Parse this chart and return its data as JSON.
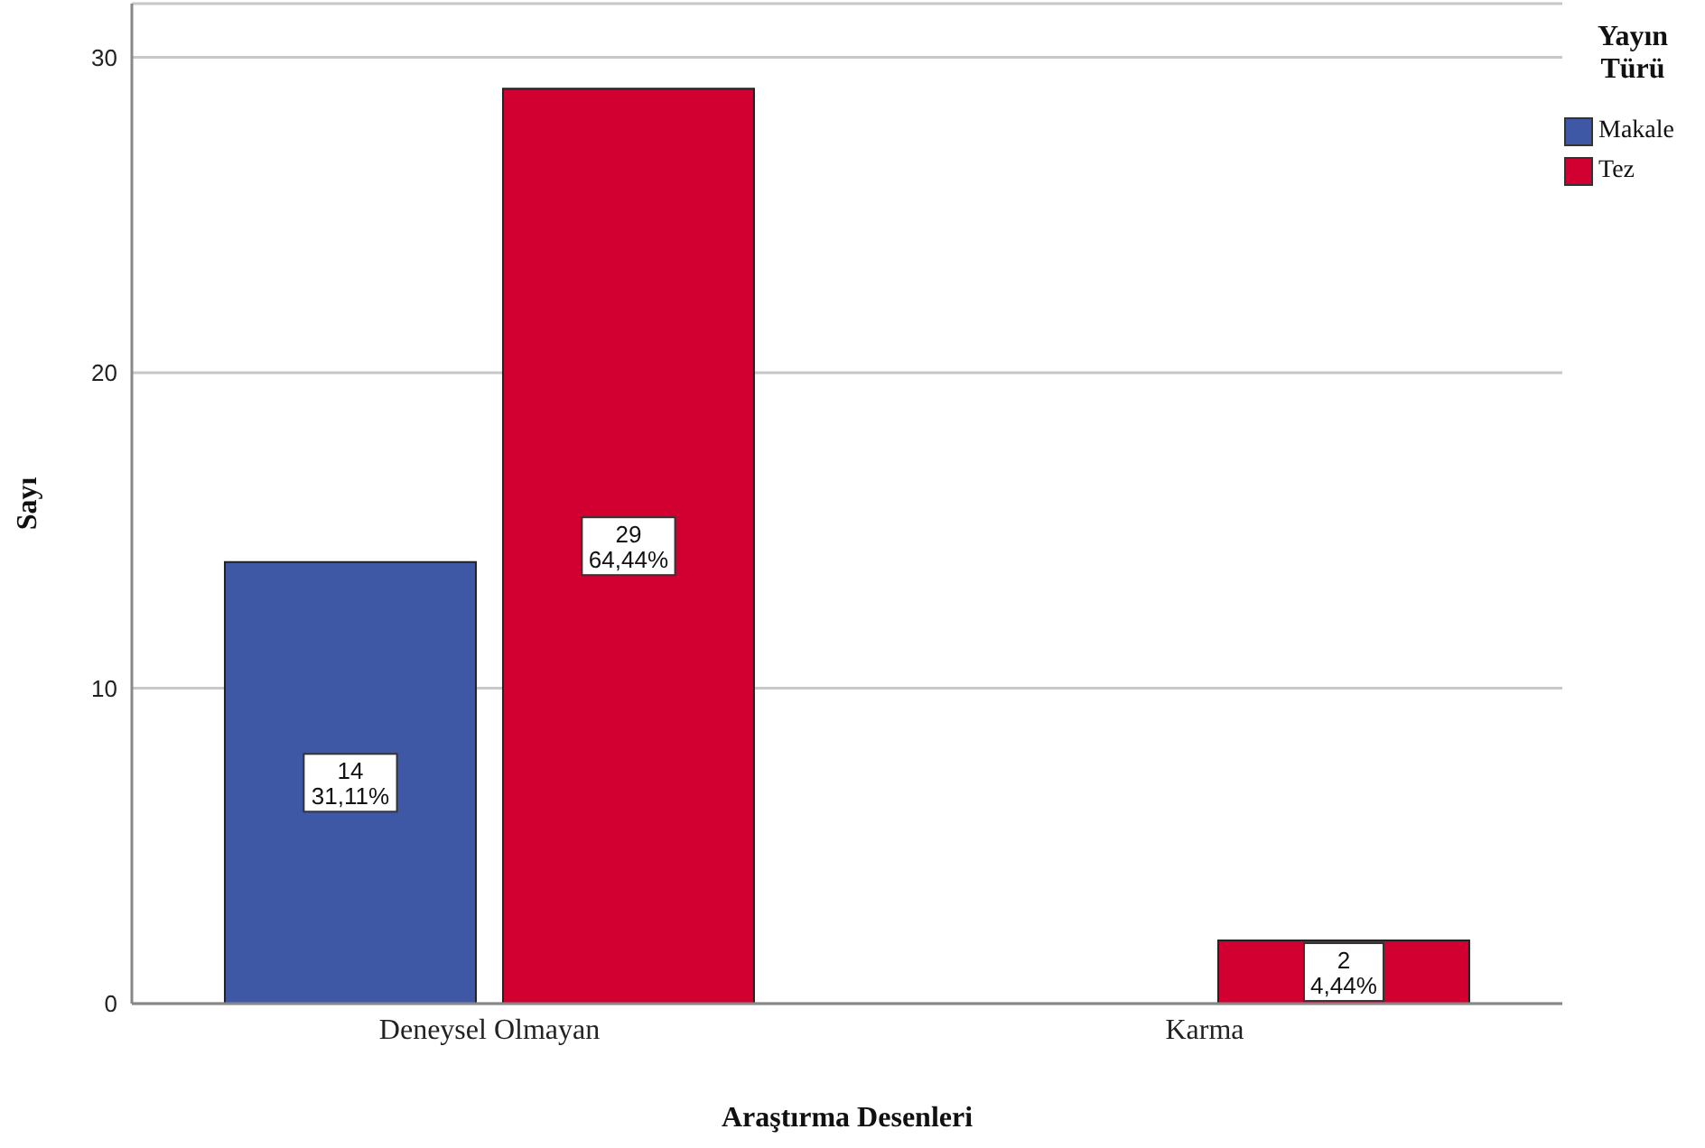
{
  "chart_data": {
    "type": "bar",
    "xlabel": "Araştırma Desenleri",
    "ylabel": "Sayı",
    "legend_title": "Yayın Türü",
    "categories": [
      "Deneysel Olmayan",
      "Karma"
    ],
    "series": [
      {
        "name": "Makale",
        "color": "#3e58a6",
        "values": [
          14,
          null
        ],
        "value_labels": [
          "14\n31,11%",
          null
        ]
      },
      {
        "name": "Tez",
        "color": "#d20030",
        "values": [
          29,
          2
        ],
        "value_labels": [
          "29\n64,44%",
          "2\n4,44%"
        ]
      }
    ],
    "ylim": [
      0,
      31.7
    ],
    "yticks": [
      0,
      10,
      20,
      30
    ],
    "grid": "y",
    "legend": "top right"
  }
}
